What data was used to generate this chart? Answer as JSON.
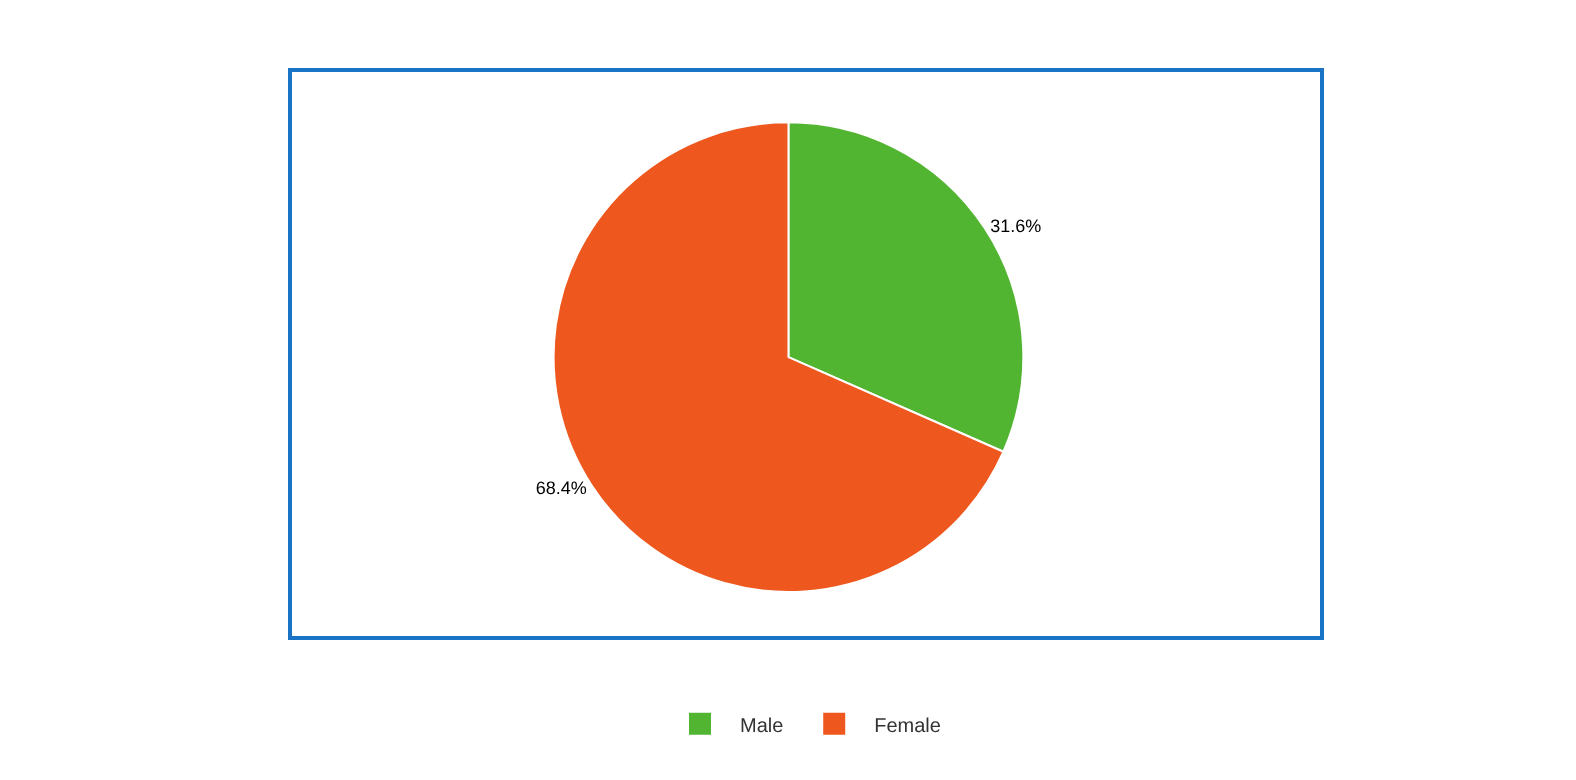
{
  "chart_data": {
    "type": "pie",
    "categories": [
      "Male",
      "Female"
    ],
    "values": [
      31.6,
      68.4
    ],
    "colors": [
      "#52b531",
      "#ee571d"
    ],
    "value_labels": [
      "31.6%",
      "68.4%"
    ],
    "legend": "bottom"
  }
}
